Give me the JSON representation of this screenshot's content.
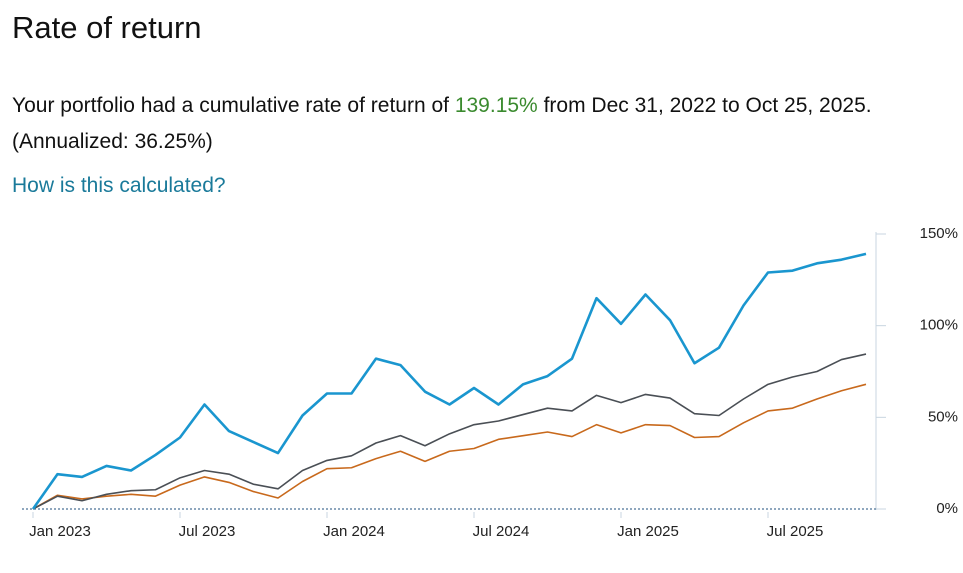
{
  "header": {
    "title": "Rate of return"
  },
  "description": {
    "before": "Your portfolio had a cumulative rate of return of ",
    "highlight": "139.15%",
    "after": " from Dec 31, 2022 to Oct 25, 2025. (Annualized: 36.25%)"
  },
  "link": "How is this calculated?",
  "chart_data": {
    "type": "line",
    "categories": [
      "Jan 2023",
      null,
      null,
      null,
      null,
      null,
      "Jul 2023",
      null,
      null,
      null,
      null,
      null,
      "Jan 2024",
      null,
      null,
      null,
      null,
      null,
      "Jul 2024",
      null,
      null,
      null,
      null,
      null,
      "Jan 2025",
      null,
      null,
      null,
      null,
      null,
      "Jul 2025",
      null,
      null,
      null,
      null
    ],
    "series": [
      {
        "color": "#1a96cf",
        "values": [
          0,
          19,
          17.5,
          23.5,
          21,
          29.5,
          39,
          57,
          42.5,
          36.5,
          30.5,
          51,
          63,
          63,
          82,
          78.5,
          64,
          57,
          66,
          57,
          68,
          72.5,
          82,
          115,
          101,
          117,
          103,
          79.5,
          88,
          111,
          129,
          130,
          134,
          136,
          139.15
        ]
      },
      {
        "color": "#4a4f55",
        "values": [
          0,
          7,
          4.5,
          8,
          10,
          10.5,
          17,
          21,
          19,
          13.5,
          11,
          21,
          26.5,
          29,
          36,
          40,
          34.5,
          41,
          46,
          48,
          51.5,
          55,
          53.5,
          62,
          58,
          62.5,
          60.5,
          52,
          51,
          60,
          68,
          72,
          75,
          81.5,
          84.5
        ]
      },
      {
        "color": "#c8691c",
        "values": [
          0,
          7.5,
          5.5,
          7,
          8,
          7,
          13,
          17.5,
          14.5,
          9.5,
          6,
          15,
          22,
          22.5,
          27.5,
          31.5,
          26,
          31.5,
          33,
          38,
          40,
          42,
          39.5,
          46,
          41.5,
          46,
          45.5,
          39,
          39.5,
          47,
          53.5,
          55,
          60,
          64.5,
          68
        ]
      }
    ],
    "ylim": [
      0,
      150
    ],
    "yticks": [
      {
        "value": 0,
        "label": "0%"
      },
      {
        "value": 50,
        "label": "50%"
      },
      {
        "value": 100,
        "label": "100%"
      },
      {
        "value": 150,
        "label": "150%"
      }
    ]
  }
}
